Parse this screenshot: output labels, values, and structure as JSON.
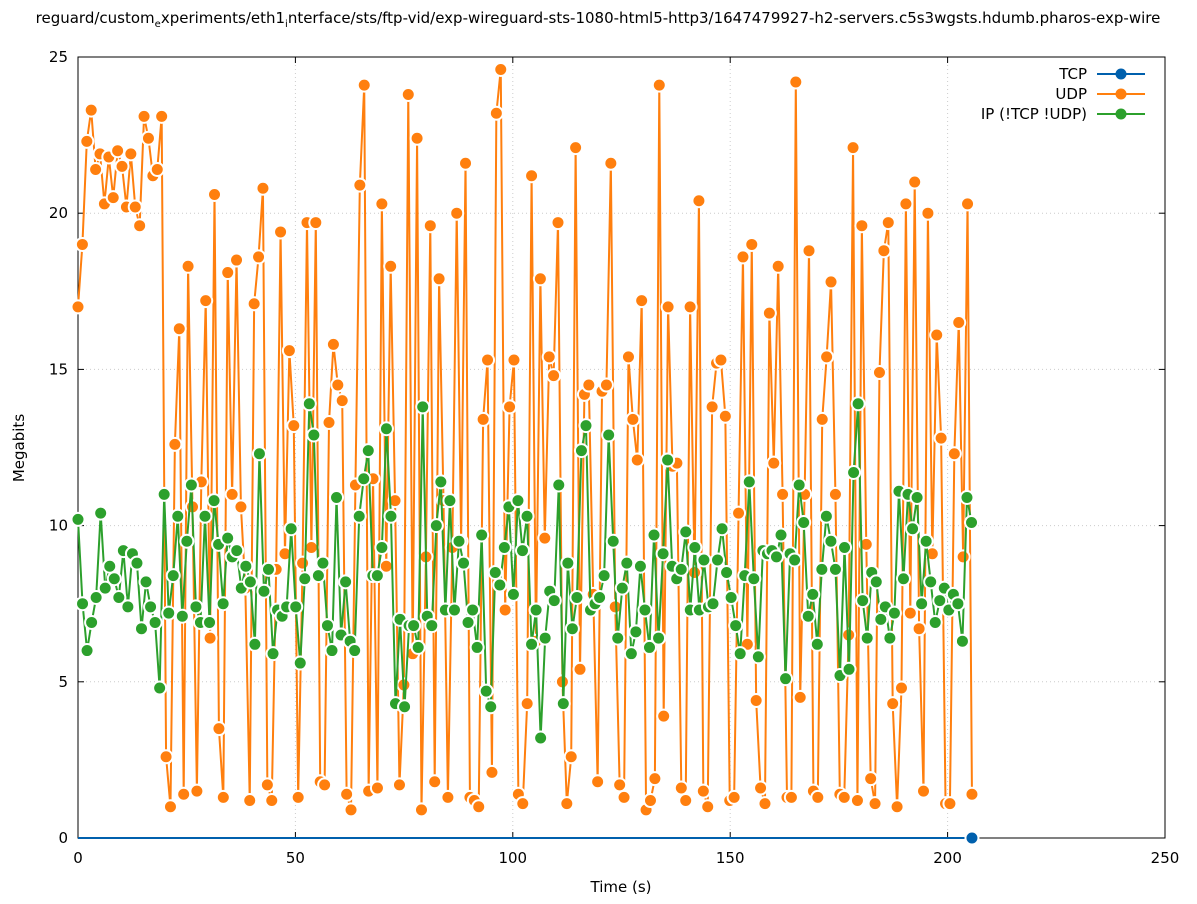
{
  "chart_data": {
    "type": "line",
    "title_parts": [
      "reguard/custom",
      "e",
      "xperiments/eth1",
      "i",
      "nterface/sts/ftp-vid/exp-wireguard-sts-1080-html5-http3/1647479927-h2-servers.c5s3wgsts.hdumb.pharos-exp-wire"
    ],
    "xlabel": "Time (s)",
    "ylabel": "Megabits",
    "xlim": [
      0,
      250
    ],
    "ylim": [
      0,
      25
    ],
    "xticks": [
      "0",
      "50",
      "100",
      "150",
      "200",
      "250"
    ],
    "yticks": [
      "0",
      "5",
      "10",
      "15",
      "20",
      "25"
    ],
    "grid": true,
    "legend_position": "top-right",
    "series": [
      {
        "name": "TCP",
        "color": "#0060ad",
        "x_start": 0,
        "x_end": 205.6,
        "values_constant": 0,
        "count": 206
      },
      {
        "name": "UDP",
        "color": "#ff7f0e",
        "x_start": 0,
        "x_end": 205.6,
        "values": [
          17,
          19,
          22.3,
          23.3,
          21.4,
          21.9,
          20.3,
          21.8,
          20.5,
          22,
          21.5,
          20.2,
          21.9,
          20.2,
          19.6,
          23.1,
          22.4,
          21.2,
          21.4,
          23.1,
          2.6,
          1,
          12.6,
          16.3,
          1.4,
          18.3,
          10.6,
          1.5,
          11.4,
          17.2,
          6.4,
          20.6,
          3.5,
          1.3,
          18.1,
          11,
          18.5,
          10.6,
          8,
          1.2,
          17.1,
          18.6,
          20.8,
          1.7,
          1.2,
          8.6,
          19.4,
          9.1,
          15.6,
          13.2,
          1.3,
          8.8,
          19.7,
          9.3,
          19.7,
          1.8,
          1.7,
          13.3,
          15.8,
          14.5,
          14,
          1.4,
          0.9,
          11.3,
          20.9,
          24.1,
          1.5,
          11.5,
          1.6,
          20.3,
          8.7,
          18.3,
          10.8,
          1.7,
          4.9,
          23.8,
          5.9,
          22.4,
          0.9,
          9,
          19.6,
          1.8,
          17.9,
          10.8,
          1.3,
          9.3,
          20,
          9.5,
          21.6,
          1.3,
          1.2,
          1,
          13.4,
          15.3,
          2.1,
          23.2,
          24.6,
          7.3,
          13.8,
          15.3,
          1.4,
          1.1,
          4.3,
          21.2,
          6.3,
          17.9,
          9.6,
          15.4,
          14.8,
          19.7,
          5,
          1.1,
          2.6,
          22.1,
          5.4,
          14.2,
          14.5,
          7.8,
          1.8,
          14.3,
          14.5,
          21.6,
          7.4,
          1.7,
          1.3,
          15.4,
          13.4,
          12.1,
          17.2,
          0.9,
          1.2,
          1.9,
          24.1,
          3.9,
          17,
          11.9,
          12,
          1.6,
          1.2,
          17,
          8.5,
          20.4,
          1.5,
          1,
          13.8,
          15.2,
          15.3,
          13.5,
          1.2,
          1.3,
          10.4,
          18.6,
          6.2,
          19,
          4.4,
          1.6,
          1.1,
          16.8,
          12,
          18.3,
          11,
          1.3,
          1.3,
          24.2,
          4.5,
          11,
          18.8,
          1.5,
          1.3,
          13.4,
          15.4,
          17.8,
          11,
          1.4,
          1.3,
          6.5,
          22.1,
          1.2,
          19.6,
          9.4,
          1.9,
          1.1,
          14.9,
          18.8,
          19.7,
          4.3,
          1,
          4.8,
          20.3,
          7.2,
          21,
          6.7,
          1.5,
          20,
          9.1,
          16.1,
          12.8,
          1.1,
          1.1,
          12.3,
          16.5,
          9,
          20.3,
          1.4
        ]
      },
      {
        "name": "IP (!TCP  !UDP)",
        "color": "#2ca02c",
        "x_start": 0,
        "x_end": 205.5,
        "values": [
          10.2,
          7.5,
          6,
          6.9,
          7.7,
          10.4,
          8,
          8.7,
          8.3,
          7.7,
          9.2,
          7.4,
          9.1,
          8.8,
          6.7,
          8.2,
          7.4,
          6.9,
          4.8,
          11,
          7.2,
          8.4,
          10.3,
          7.1,
          9.5,
          11.3,
          7.4,
          6.9,
          10.3,
          6.9,
          10.8,
          9.4,
          7.5,
          9.6,
          9,
          9.2,
          8,
          8.7,
          8.2,
          6.2,
          12.3,
          7.9,
          8.6,
          5.9,
          7.3,
          7.1,
          7.4,
          9.9,
          7.4,
          5.6,
          8.3,
          13.9,
          12.9,
          8.4,
          8.8,
          6.8,
          6,
          10.9,
          6.5,
          8.2,
          6.3,
          6,
          10.3,
          11.5,
          12.4,
          8.4,
          8.4,
          9.3,
          13.1,
          10.3,
          4.3,
          7,
          4.2,
          6.8,
          6.8,
          6.1,
          13.8,
          7.1,
          6.8,
          10,
          11.4,
          7.3,
          10.8,
          7.3,
          9.5,
          8.8,
          6.9,
          7.3,
          6.1,
          9.7,
          4.7,
          4.2,
          8.5,
          8.1,
          9.3,
          10.6,
          7.8,
          10.8,
          9.2,
          10.3,
          6.2,
          7.3,
          3.2,
          6.4,
          7.9,
          7.6,
          11.3,
          4.3,
          8.8,
          6.7,
          7.7,
          12.4,
          13.2,
          7.3,
          7.5,
          7.7,
          8.4,
          12.9,
          9.5,
          6.4,
          8,
          8.8,
          5.9,
          6.6,
          8.7,
          7.3,
          6.1,
          9.7,
          6.4,
          9.1,
          12.1,
          8.7,
          8.3,
          8.6,
          9.8,
          7.3,
          9.3,
          7.3,
          8.9,
          7.4,
          7.5,
          8.9,
          9.9,
          8.5,
          7.7,
          6.8,
          5.9,
          8.4,
          11.4,
          8.3,
          5.8,
          9.2,
          9.1,
          9.2,
          9,
          9.7,
          5.1,
          9.1,
          8.9,
          11.3,
          10.1,
          7.1,
          7.8,
          6.2,
          8.6,
          10.3,
          9.5,
          8.6,
          5.2,
          9.3,
          5.4,
          11.7,
          13.9,
          7.6,
          6.4,
          8.5,
          8.2,
          7,
          7.4,
          6.4,
          7.2,
          11.1,
          8.3,
          11,
          9.9,
          10.9,
          7.5,
          9.5,
          8.2,
          6.9,
          7.6,
          8,
          7.3,
          7.8,
          7.5,
          6.3,
          10.9,
          10.1
        ]
      }
    ]
  }
}
